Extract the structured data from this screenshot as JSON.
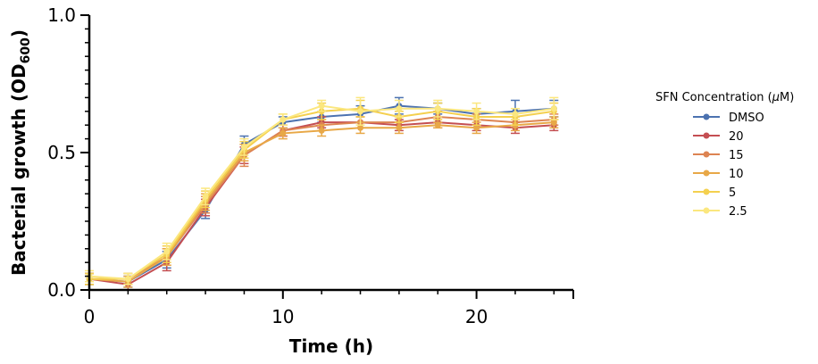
{
  "chart_data": {
    "type": "line",
    "title": "",
    "xlabel": "Time (h)",
    "ylabel_main": "Bacterial growth (OD",
    "ylabel_sub": "600",
    "ylabel_close": ")",
    "xlim": [
      0,
      25
    ],
    "ylim": [
      0,
      1.0
    ],
    "x_ticks": [
      0,
      10,
      20
    ],
    "x_tick_labels": [
      "0",
      "10",
      "20"
    ],
    "y_ticks": [
      0,
      0.5,
      1.0
    ],
    "y_tick_labels": [
      "0.0",
      "0.5",
      "1.0"
    ],
    "grid": false,
    "legend_position": "right",
    "legend_title_main": "SFN Concentration (",
    "legend_title_mu": "μ",
    "legend_title_tail": "M)",
    "x": [
      0,
      2,
      4,
      6,
      8,
      10,
      12,
      14,
      16,
      18,
      20,
      22,
      24
    ],
    "series": [
      {
        "name": "DMSO",
        "color": "#4c72b0",
        "values": [
          0.04,
          0.03,
          0.11,
          0.29,
          0.53,
          0.61,
          0.63,
          0.64,
          0.67,
          0.66,
          0.64,
          0.65,
          0.66
        ],
        "errors": [
          0.02,
          0.02,
          0.03,
          0.03,
          0.03,
          0.02,
          0.02,
          0.03,
          0.03,
          0.02,
          0.02,
          0.04,
          0.03
        ]
      },
      {
        "name": "20",
        "color": "#c44e52",
        "values": [
          0.04,
          0.02,
          0.1,
          0.3,
          0.49,
          0.58,
          0.61,
          0.61,
          0.6,
          0.61,
          0.6,
          0.59,
          0.6
        ],
        "errors": [
          0.02,
          0.02,
          0.03,
          0.03,
          0.03,
          0.02,
          0.02,
          0.02,
          0.02,
          0.02,
          0.02,
          0.02,
          0.02
        ]
      },
      {
        "name": "15",
        "color": "#dd8452",
        "values": [
          0.04,
          0.04,
          0.12,
          0.31,
          0.49,
          0.58,
          0.6,
          0.61,
          0.61,
          0.63,
          0.62,
          0.61,
          0.62
        ],
        "errors": [
          0.02,
          0.02,
          0.03,
          0.03,
          0.04,
          0.02,
          0.02,
          0.02,
          0.02,
          0.02,
          0.02,
          0.02,
          0.02
        ]
      },
      {
        "name": "10",
        "color": "#e8a847",
        "values": [
          0.04,
          0.03,
          0.12,
          0.32,
          0.5,
          0.57,
          0.58,
          0.59,
          0.59,
          0.6,
          0.59,
          0.6,
          0.61
        ],
        "errors": [
          0.02,
          0.02,
          0.03,
          0.03,
          0.03,
          0.02,
          0.02,
          0.02,
          0.02,
          0.01,
          0.02,
          0.02,
          0.02
        ]
      },
      {
        "name": "5",
        "color": "#f4d04f",
        "values": [
          0.04,
          0.04,
          0.13,
          0.33,
          0.51,
          0.62,
          0.65,
          0.66,
          0.63,
          0.65,
          0.63,
          0.63,
          0.65
        ],
        "errors": [
          0.02,
          0.02,
          0.03,
          0.03,
          0.03,
          0.02,
          0.03,
          0.03,
          0.02,
          0.03,
          0.03,
          0.03,
          0.03
        ]
      },
      {
        "name": "2.5",
        "color": "#fbe77f",
        "values": [
          0.05,
          0.04,
          0.14,
          0.34,
          0.52,
          0.62,
          0.67,
          0.65,
          0.66,
          0.66,
          0.65,
          0.64,
          0.66
        ],
        "errors": [
          0.02,
          0.02,
          0.03,
          0.03,
          0.03,
          0.02,
          0.02,
          0.05,
          0.03,
          0.03,
          0.03,
          0.02,
          0.04
        ]
      }
    ]
  }
}
